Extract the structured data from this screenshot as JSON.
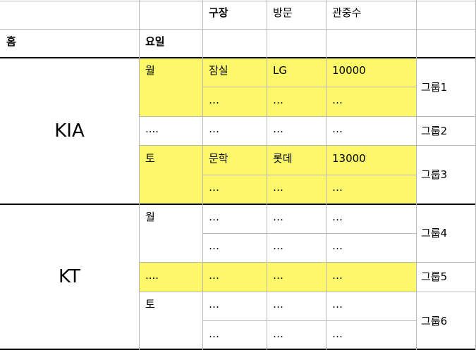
{
  "header": {
    "row1": [
      "",
      "",
      "구장",
      "방문",
      "관중수"
    ],
    "row2": [
      "홈",
      "요일",
      "",
      "",
      ""
    ]
  },
  "teams": [
    {
      "name": "KIA",
      "groups": [
        {
          "label": "그룹1",
          "day": "월",
          "highlight": true,
          "rows": [
            [
              "잠실",
              "LG",
              "10000"
            ],
            [
              "…",
              "…",
              "…"
            ]
          ]
        },
        {
          "label": "그룹2",
          "day": "....",
          "highlight": false,
          "rows": [
            [
              "…",
              "…",
              "…"
            ]
          ]
        },
        {
          "label": "그룹3",
          "day": "토",
          "highlight": true,
          "rows": [
            [
              "문학",
              "롯데",
              "13000"
            ],
            [
              "…",
              "…",
              "…"
            ]
          ]
        }
      ]
    },
    {
      "name": "KT",
      "groups": [
        {
          "label": "그룹4",
          "day": "월",
          "highlight": false,
          "rows": [
            [
              "…",
              "…",
              "…"
            ],
            [
              "…",
              "…",
              "…"
            ]
          ]
        },
        {
          "label": "그룹5",
          "day": "....",
          "highlight": true,
          "rows": [
            [
              "…",
              "…",
              "…"
            ]
          ]
        },
        {
          "label": "그룹6",
          "day": "토",
          "highlight": false,
          "rows": [
            [
              "…",
              "…",
              "…"
            ],
            [
              "…",
              "…",
              "…"
            ]
          ]
        }
      ]
    }
  ],
  "colors": {
    "highlight": "#fdf86a",
    "grid": "#b8b8b8",
    "rule": "#000000"
  }
}
